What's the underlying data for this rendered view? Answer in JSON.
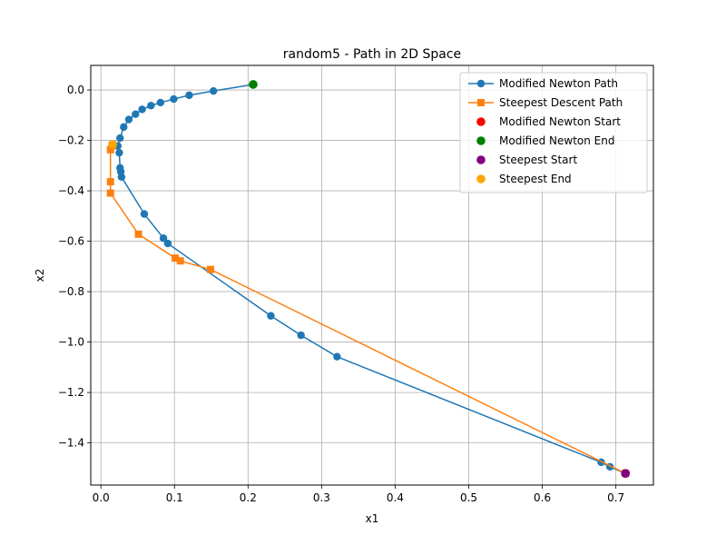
{
  "chart_data": {
    "type": "line",
    "title": "random5 - Path in 2D Space",
    "xlabel": "x1",
    "ylabel": "x2",
    "xlim": [
      -0.0138,
      0.751
    ],
    "ylim": [
      -1.5672,
      0.0975
    ],
    "xticks": [
      0.0,
      0.1,
      0.2,
      0.3,
      0.4,
      0.5,
      0.6,
      0.7
    ],
    "xtick_labels": [
      "0.0",
      "0.1",
      "0.2",
      "0.3",
      "0.4",
      "0.5",
      "0.6",
      "0.7"
    ],
    "yticks": [
      0.0,
      -0.2,
      -0.4,
      -0.6,
      -0.8,
      -1.0,
      -1.2,
      -1.4
    ],
    "ytick_labels": [
      "0.0",
      "−0.2",
      "−0.4",
      "−0.6",
      "−0.8",
      "−1.0",
      "−1.2",
      "−1.4"
    ],
    "grid": true,
    "legend_position": "top-right",
    "series": [
      {
        "name": "Modified Newton Path",
        "kind": "line",
        "marker": "circle",
        "color": "#1f77b4",
        "x": [
          0.713,
          0.692,
          0.68,
          0.321,
          0.272,
          0.231,
          0.091,
          0.085,
          0.059,
          0.028,
          0.027,
          0.026,
          0.025,
          0.023,
          0.026,
          0.031,
          0.038,
          0.047,
          0.056,
          0.068,
          0.081,
          0.099,
          0.12,
          0.153,
          0.207
        ],
        "y": [
          -1.521,
          -1.495,
          -1.477,
          -1.058,
          -0.973,
          -0.896,
          -0.609,
          -0.588,
          -0.492,
          -0.345,
          -0.324,
          -0.309,
          -0.249,
          -0.222,
          -0.191,
          -0.147,
          -0.117,
          -0.096,
          -0.077,
          -0.062,
          -0.05,
          -0.036,
          -0.021,
          -0.004,
          0.022
        ]
      },
      {
        "name": "Steepest Descent Path",
        "kind": "line",
        "marker": "square",
        "color": "#ff7f0e",
        "x": [
          0.713,
          0.149,
          0.108,
          0.101,
          0.051,
          0.013,
          0.013,
          0.013,
          0.015,
          0.016
        ],
        "y": [
          -1.521,
          -0.712,
          -0.678,
          -0.667,
          -0.572,
          -0.409,
          -0.364,
          -0.237,
          -0.222,
          -0.217
        ]
      },
      {
        "name": "Modified Newton Start",
        "kind": "scatter",
        "color": "#ff0000",
        "x": [
          0.713
        ],
        "y": [
          -1.521
        ]
      },
      {
        "name": "Modified Newton End",
        "kind": "scatter",
        "color": "#008000",
        "x": [
          0.207
        ],
        "y": [
          0.022
        ]
      },
      {
        "name": "Steepest Start",
        "kind": "scatter",
        "color": "#800080",
        "x": [
          0.713
        ],
        "y": [
          -1.521
        ]
      },
      {
        "name": "Steepest End",
        "kind": "scatter",
        "color": "#ffa500",
        "x": [
          0.016
        ],
        "y": [
          -0.217
        ]
      }
    ]
  }
}
